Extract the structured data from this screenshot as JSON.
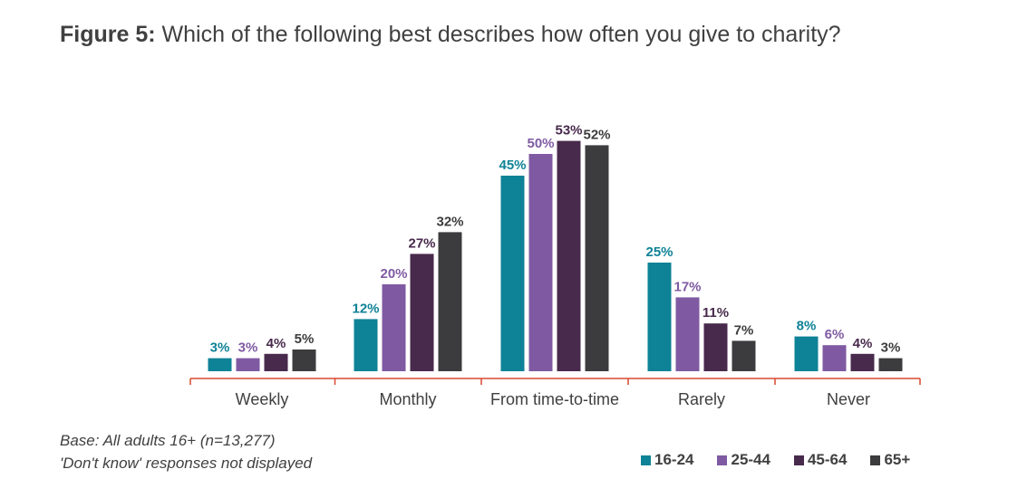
{
  "title": {
    "prefix": "Figure 5:",
    "text": "Which of the following best describes how often you give to charity?"
  },
  "notes": {
    "base": "Base: All adults 16+ (n=13,277)",
    "dont_know": "'Don't know' responses not displayed"
  },
  "chart_data": {
    "type": "bar",
    "categories": [
      "Weekly",
      "Monthly",
      "From time-to-time",
      "Rarely",
      "Never"
    ],
    "series": [
      {
        "name": "16-24",
        "color": "#0e8296",
        "values": [
          3,
          12,
          45,
          25,
          8
        ]
      },
      {
        "name": "25-44",
        "color": "#7f5aa2",
        "values": [
          3,
          20,
          50,
          17,
          6
        ]
      },
      {
        "name": "45-64",
        "color": "#482a4c",
        "values": [
          4,
          27,
          53,
          11,
          4
        ]
      },
      {
        "name": "65+",
        "color": "#3c3c3e",
        "values": [
          5,
          32,
          52,
          7,
          3
        ]
      }
    ],
    "value_suffix": "%",
    "ylim": [
      0,
      60
    ],
    "grid": false,
    "legend_position": "bottom-right",
    "axis_color": "#d9492e"
  }
}
